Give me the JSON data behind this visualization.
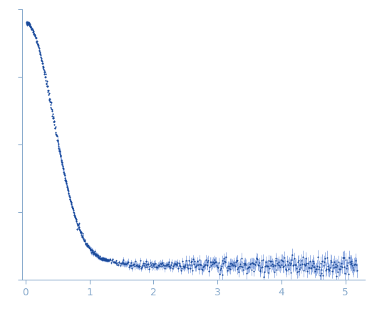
{
  "title": "",
  "xlabel": "",
  "ylabel": "",
  "xlim": [
    -0.05,
    5.3
  ],
  "dot_color": "#1a4a9a",
  "error_color": "#7799dd",
  "dot_size": 2.5,
  "axis_color": "#88aacc",
  "tick_color": "#88aacc",
  "tick_label_color": "#88aacc",
  "background_color": "#ffffff",
  "xticks": [
    0,
    1,
    2,
    3,
    4,
    5
  ],
  "line_width": 0.8
}
